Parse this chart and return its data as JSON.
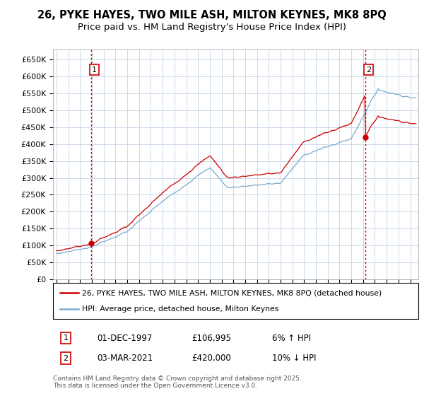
{
  "title_line1": "26, PYKE HAYES, TWO MILE ASH, MILTON KEYNES, MK8 8PQ",
  "title_line2": "Price paid vs. HM Land Registry's House Price Index (HPI)",
  "ylim": [
    0,
    680000
  ],
  "yticks": [
    0,
    50000,
    100000,
    150000,
    200000,
    250000,
    300000,
    350000,
    400000,
    450000,
    500000,
    550000,
    600000,
    650000
  ],
  "ytick_labels": [
    "£0",
    "£50K",
    "£100K",
    "£150K",
    "£200K",
    "£250K",
    "£300K",
    "£350K",
    "£400K",
    "£450K",
    "£500K",
    "£550K",
    "£600K",
    "£650K"
  ],
  "marker1_t": 1997.917,
  "marker1_price": 106995,
  "marker1_date_str": "01-DEC-1997",
  "marker2_t": 2021.167,
  "marker2_price": 420000,
  "marker2_date_str": "03-MAR-2021",
  "legend_line1": "26, PYKE HAYES, TWO MILE ASH, MILTON KEYNES, MK8 8PQ (detached house)",
  "legend_line2": "HPI: Average price, detached house, Milton Keynes",
  "footnote_line1": "Contains HM Land Registry data © Crown copyright and database right 2025.",
  "footnote_line2": "This data is licensed under the Open Government Licence v3.0.",
  "line_color_red": "#cc0000",
  "line_color_blue": "#7aabcf",
  "background_color": "#ffffff",
  "grid_color": "#ccd9e8",
  "box_color": "#cc0000",
  "title_fontsize": 10.5,
  "subtitle_fontsize": 9.5
}
